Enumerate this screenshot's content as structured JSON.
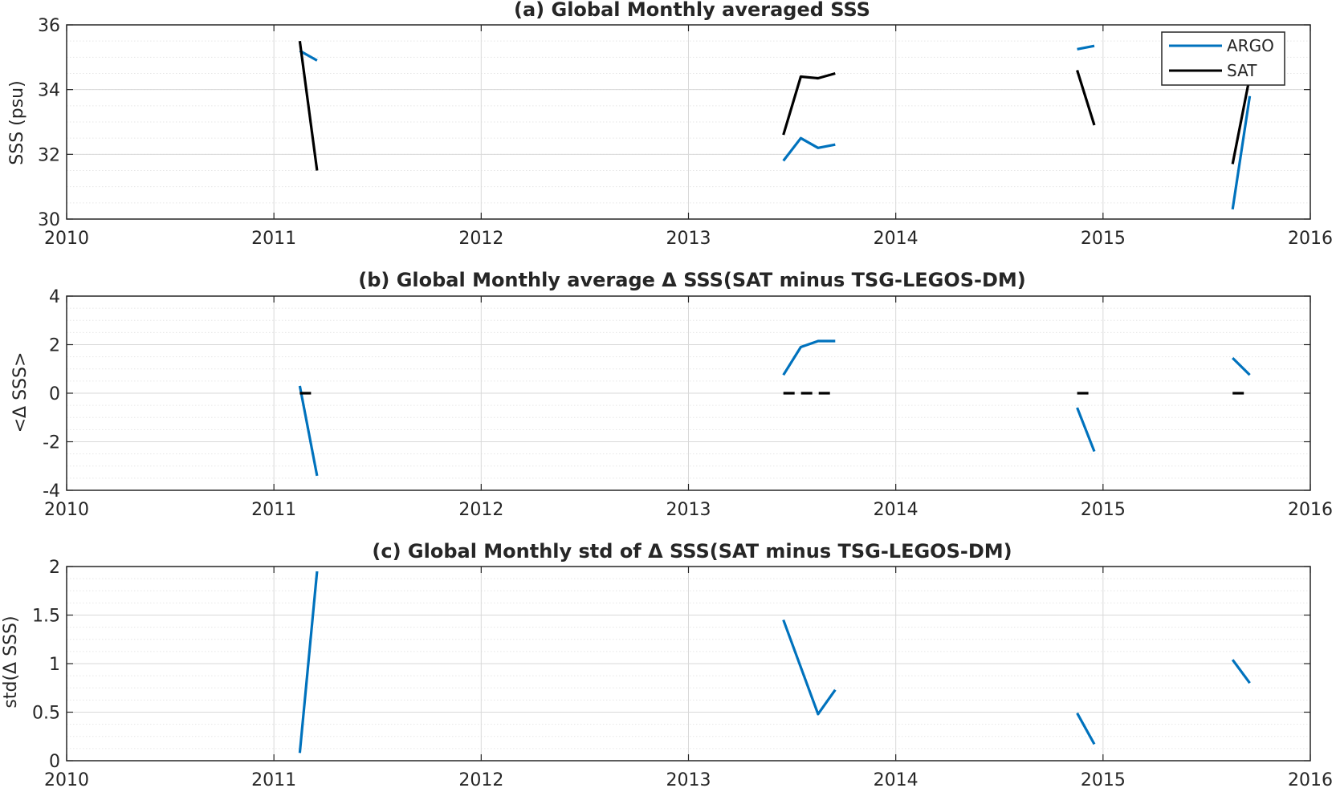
{
  "colors": {
    "ARGO": "#0072bd",
    "SAT": "#000000",
    "major_grid": "#d9d9d9",
    "minor_grid": "#e6e6e6",
    "axes": "#262626"
  },
  "chart_data": [
    {
      "type": "line",
      "title": "(a) Global Monthly averaged SSS",
      "xlabel": "",
      "ylabel": "SSS (psu)",
      "xlim": [
        2010,
        2016
      ],
      "ylim": [
        30,
        36
      ],
      "xticks": [
        "2010",
        "2011",
        "2012",
        "2013",
        "2014",
        "2015",
        "2016"
      ],
      "yticks": [
        "30",
        "32",
        "34",
        "36"
      ],
      "grid": true,
      "minor_grid": true,
      "legend": "top-right",
      "series": [
        {
          "name": "ARGO",
          "segments": [
            [
              [
                2011.125,
                35.2
              ],
              [
                2011.208,
                34.9
              ]
            ],
            [
              [
                2013.458,
                31.8
              ],
              [
                2013.542,
                32.5
              ],
              [
                2013.625,
                32.2
              ],
              [
                2013.708,
                32.3
              ]
            ],
            [
              [
                2014.875,
                35.25
              ],
              [
                2014.958,
                35.35
              ]
            ],
            [
              [
                2015.625,
                30.3
              ],
              [
                2015.708,
                33.8
              ]
            ]
          ]
        },
        {
          "name": "SAT",
          "segments": [
            [
              [
                2011.125,
                35.5
              ],
              [
                2011.208,
                31.5
              ]
            ],
            [
              [
                2013.458,
                32.6
              ],
              [
                2013.542,
                34.4
              ],
              [
                2013.625,
                34.35
              ],
              [
                2013.708,
                34.5
              ]
            ],
            [
              [
                2014.875,
                34.6
              ],
              [
                2014.958,
                32.9
              ]
            ],
            [
              [
                2015.625,
                31.7
              ],
              [
                2015.708,
                34.4
              ]
            ]
          ]
        }
      ]
    },
    {
      "type": "line",
      "title": "(b) Global Monthly average Δ SSS(SAT minus TSG-LEGOS-DM)",
      "xlabel": "",
      "ylabel": "<Δ SSS>",
      "xlim": [
        2010,
        2016
      ],
      "ylim": [
        -4,
        4
      ],
      "xticks": [
        "2010",
        "2011",
        "2012",
        "2013",
        "2014",
        "2015",
        "2016"
      ],
      "yticks": [
        "-4",
        "-2",
        "0",
        "2",
        "4"
      ],
      "grid": true,
      "minor_grid": true,
      "series": [
        {
          "name": "ARGO",
          "segments": [
            [
              [
                2011.125,
                0.3
              ],
              [
                2011.208,
                -3.4
              ]
            ],
            [
              [
                2013.458,
                0.75
              ],
              [
                2013.542,
                1.9
              ],
              [
                2013.625,
                2.15
              ],
              [
                2013.708,
                2.15
              ]
            ],
            [
              [
                2014.875,
                -0.6
              ],
              [
                2014.958,
                -2.4
              ]
            ],
            [
              [
                2015.625,
                1.45
              ],
              [
                2015.708,
                0.75
              ]
            ]
          ]
        },
        {
          "name": "SAT",
          "style": "dashed",
          "segments": [
            [
              [
                2011.125,
                0
              ],
              [
                2011.208,
                0
              ]
            ],
            [
              [
                2013.458,
                0
              ],
              [
                2013.542,
                0
              ],
              [
                2013.625,
                0
              ],
              [
                2013.708,
                0
              ]
            ],
            [
              [
                2014.875,
                0
              ],
              [
                2014.958,
                0
              ]
            ],
            [
              [
                2015.625,
                0
              ],
              [
                2015.708,
                0
              ]
            ]
          ]
        }
      ]
    },
    {
      "type": "line",
      "title": "(c) Global Monthly std of Δ SSS(SAT minus TSG-LEGOS-DM)",
      "xlabel": "",
      "ylabel": "std(Δ SSS)",
      "xlim": [
        2010,
        2016
      ],
      "ylim": [
        0,
        2
      ],
      "xticks": [
        "2010",
        "2011",
        "2012",
        "2013",
        "2014",
        "2015",
        "2016"
      ],
      "yticks": [
        "0",
        "0.5",
        "1",
        "1.5",
        "2"
      ],
      "grid": true,
      "minor_grid": true,
      "series": [
        {
          "name": "ARGO",
          "segments": [
            [
              [
                2011.125,
                0.08
              ],
              [
                2011.208,
                1.95
              ]
            ],
            [
              [
                2013.458,
                1.45
              ],
              [
                2013.625,
                0.48
              ],
              [
                2013.708,
                0.73
              ]
            ],
            [
              [
                2014.875,
                0.49
              ],
              [
                2014.958,
                0.17
              ]
            ],
            [
              [
                2015.625,
                1.04
              ],
              [
                2015.708,
                0.8
              ]
            ]
          ]
        }
      ]
    }
  ]
}
